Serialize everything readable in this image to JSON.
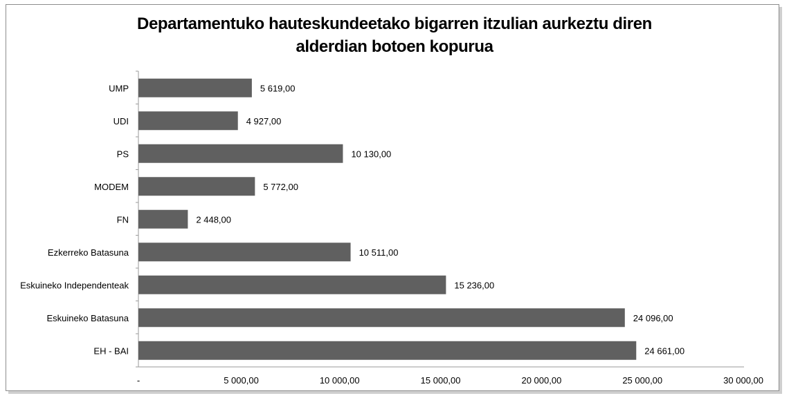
{
  "chart_data": {
    "type": "bar",
    "orientation": "horizontal",
    "title_lines": [
      "Departamentuko hauteskundeetako bigarren itzulian aurkeztu diren",
      "alderdian botoen kopurua"
    ],
    "categories": [
      "UMP",
      "UDI",
      "PS",
      "MODEM",
      "FN",
      "Ezkerreko Batasuna",
      "Eskuineko Independenteak",
      "Eskuineko Batasuna",
      "EH - BAI"
    ],
    "values": [
      5619,
      4927,
      10130,
      5772,
      2448,
      10511,
      15236,
      24096,
      24661
    ],
    "value_labels": [
      "5 619,00",
      "4 927,00",
      "10 130,00",
      "5 772,00",
      "2 448,00",
      "10 511,00",
      "15 236,00",
      "24 096,00",
      "24 661,00"
    ],
    "xlim": [
      0,
      30000
    ],
    "x_ticks": [
      0,
      5000,
      10000,
      15000,
      20000,
      25000,
      30000
    ],
    "x_tick_labels": [
      "-",
      "5 000,00",
      "10 000,00",
      "15 000,00",
      "20 000,00",
      "25 000,00",
      "30 000,00"
    ],
    "bar_color": "#606060",
    "grid": false
  }
}
